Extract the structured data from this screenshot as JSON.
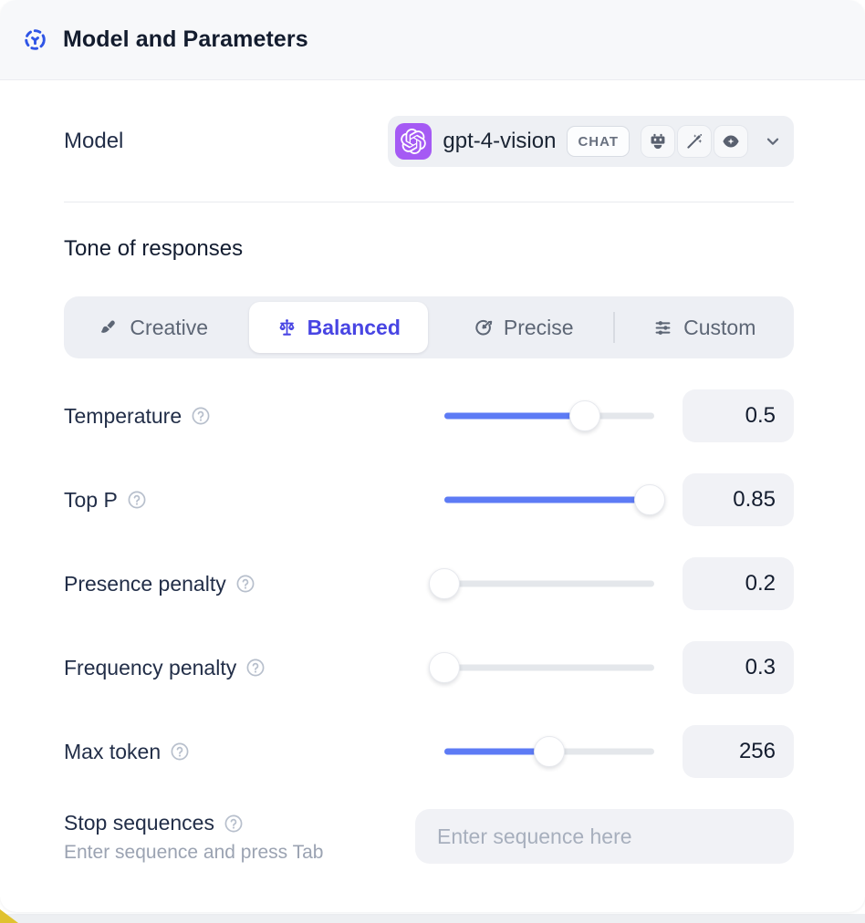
{
  "header": {
    "title": "Model and Parameters",
    "icon": "model-hub-icon"
  },
  "model_row": {
    "label": "Model",
    "selected_model": "gpt-4-vision",
    "type_badge": "CHAT",
    "capability_icons": [
      "robot-icon",
      "magic-wand-icon",
      "vision-eye-icon"
    ]
  },
  "tone": {
    "label": "Tone of responses",
    "tabs": [
      {
        "label": "Creative",
        "icon": "paintbrush-icon",
        "active": false
      },
      {
        "label": "Balanced",
        "icon": "balance-scale-icon",
        "active": true
      },
      {
        "label": "Precise",
        "icon": "target-arrow-icon",
        "active": false
      },
      {
        "label": "Custom",
        "icon": "sliders-icon",
        "active": false
      }
    ]
  },
  "parameters": [
    {
      "label": "Temperature",
      "value": "0.5",
      "fill_percent": 67
    },
    {
      "label": "Top P",
      "value": "0.85",
      "fill_percent": 98
    },
    {
      "label": "Presence penalty",
      "value": "0.2",
      "fill_percent": 0
    },
    {
      "label": "Frequency penalty",
      "value": "0.3",
      "fill_percent": 0
    },
    {
      "label": "Max token",
      "value": "256",
      "fill_percent": 50
    }
  ],
  "stop_sequences": {
    "label": "Stop sequences",
    "helper": "Enter sequence and press Tab",
    "placeholder": "Enter sequence here"
  },
  "colors": {
    "accent": "#4845e3",
    "slider_fill": "#5d7bf5",
    "brand_blue": "#2f55e6",
    "logo_purple": "#a55af4",
    "header_bg": "#f7f8fa"
  }
}
